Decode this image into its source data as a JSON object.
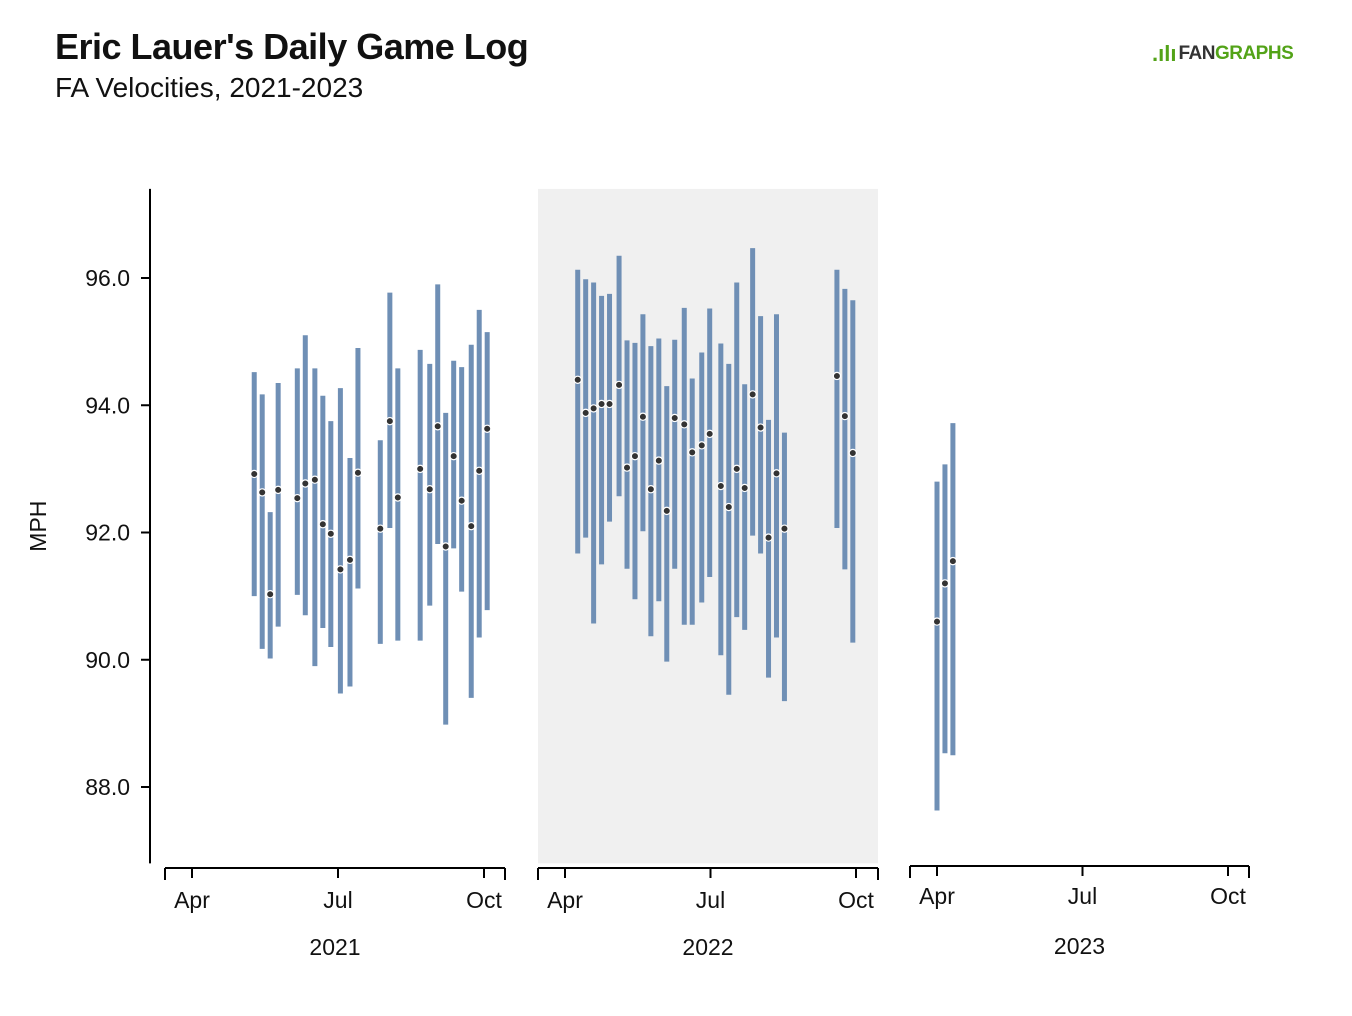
{
  "title": "Eric Lauer's Daily Game Log",
  "subtitle": "FA Velocities, 2021-2023",
  "logo": {
    "mark": ".ılı",
    "text_a": "FAN",
    "text_b": "GRAPHS"
  },
  "colors": {
    "bar": "#6f8fb5",
    "dot_fill": "#333333",
    "dot_stroke": "#ffffff",
    "highlight_panel": "#f0f0f0",
    "axis": "#000000",
    "logo_green": "#53a318"
  },
  "chart_data": {
    "type": "errorbar",
    "ylabel": "MPH",
    "ylim": [
      86.8,
      97.4
    ],
    "yticks": [
      88.0,
      90.0,
      92.0,
      94.0,
      96.0
    ],
    "ytick_labels": [
      "88.0",
      "90.0",
      "92.0",
      "94.0",
      "96.0"
    ],
    "month_ticks": [
      "Apr",
      "Jul",
      "Oct"
    ],
    "highlighted_panel": "2022",
    "panels": [
      {
        "year": "2021",
        "games": [
          {
            "date": "2021-05-10",
            "avg": 92.92,
            "min": 91.0,
            "max": 94.52
          },
          {
            "date": "2021-05-15",
            "avg": 92.63,
            "min": 90.17,
            "max": 94.17
          },
          {
            "date": "2021-05-20",
            "avg": 91.03,
            "min": 90.02,
            "max": 92.32
          },
          {
            "date": "2021-05-25",
            "avg": 92.67,
            "min": 90.52,
            "max": 94.35
          },
          {
            "date": "2021-06-06",
            "avg": 92.54,
            "min": 91.02,
            "max": 94.58
          },
          {
            "date": "2021-06-11",
            "avg": 92.77,
            "min": 90.7,
            "max": 95.1
          },
          {
            "date": "2021-06-17",
            "avg": 92.83,
            "min": 89.9,
            "max": 94.58
          },
          {
            "date": "2021-06-22",
            "avg": 92.13,
            "min": 90.5,
            "max": 94.15
          },
          {
            "date": "2021-06-27",
            "avg": 91.98,
            "min": 90.2,
            "max": 93.75
          },
          {
            "date": "2021-07-03",
            "avg": 91.42,
            "min": 89.47,
            "max": 94.27
          },
          {
            "date": "2021-07-09",
            "avg": 91.57,
            "min": 89.58,
            "max": 93.17
          },
          {
            "date": "2021-07-14",
            "avg": 92.94,
            "min": 91.12,
            "max": 94.9
          },
          {
            "date": "2021-07-28",
            "avg": 92.06,
            "min": 90.25,
            "max": 93.45
          },
          {
            "date": "2021-08-03",
            "avg": 93.75,
            "min": 92.07,
            "max": 95.77
          },
          {
            "date": "2021-08-08",
            "avg": 92.55,
            "min": 90.3,
            "max": 94.58
          },
          {
            "date": "2021-08-22",
            "avg": 93.0,
            "min": 90.3,
            "max": 94.87
          },
          {
            "date": "2021-08-28",
            "avg": 92.68,
            "min": 90.85,
            "max": 94.65
          },
          {
            "date": "2021-09-02",
            "avg": 93.67,
            "min": 91.82,
            "max": 95.9
          },
          {
            "date": "2021-09-07",
            "avg": 91.78,
            "min": 88.98,
            "max": 93.88
          },
          {
            "date": "2021-09-12",
            "avg": 93.2,
            "min": 91.75,
            "max": 94.7
          },
          {
            "date": "2021-09-17",
            "avg": 92.5,
            "min": 91.07,
            "max": 94.6
          },
          {
            "date": "2021-09-23",
            "avg": 92.1,
            "min": 89.4,
            "max": 94.95
          },
          {
            "date": "2021-09-28",
            "avg": 92.97,
            "min": 90.35,
            "max": 95.5
          },
          {
            "date": "2021-10-03",
            "avg": 93.63,
            "min": 90.78,
            "max": 95.15
          }
        ]
      },
      {
        "year": "2022",
        "games": [
          {
            "date": "2022-04-09",
            "avg": 94.4,
            "min": 91.67,
            "max": 96.13
          },
          {
            "date": "2022-04-14",
            "avg": 93.88,
            "min": 91.92,
            "max": 95.98
          },
          {
            "date": "2022-04-19",
            "avg": 93.95,
            "min": 90.57,
            "max": 95.93
          },
          {
            "date": "2022-04-24",
            "avg": 94.02,
            "min": 91.5,
            "max": 95.72
          },
          {
            "date": "2022-04-29",
            "avg": 94.02,
            "min": 92.17,
            "max": 95.75
          },
          {
            "date": "2022-05-05",
            "avg": 94.32,
            "min": 92.57,
            "max": 96.35
          },
          {
            "date": "2022-05-10",
            "avg": 93.02,
            "min": 91.43,
            "max": 95.02
          },
          {
            "date": "2022-05-15",
            "avg": 93.2,
            "min": 90.95,
            "max": 94.98
          },
          {
            "date": "2022-05-20",
            "avg": 93.82,
            "min": 92.02,
            "max": 95.43
          },
          {
            "date": "2022-05-25",
            "avg": 92.68,
            "min": 90.37,
            "max": 94.93
          },
          {
            "date": "2022-05-30",
            "avg": 93.13,
            "min": 90.92,
            "max": 95.05
          },
          {
            "date": "2022-06-04",
            "avg": 92.34,
            "min": 89.97,
            "max": 94.3
          },
          {
            "date": "2022-06-09",
            "avg": 93.8,
            "min": 91.43,
            "max": 95.03
          },
          {
            "date": "2022-06-15",
            "avg": 93.7,
            "min": 90.55,
            "max": 95.53
          },
          {
            "date": "2022-06-20",
            "avg": 93.26,
            "min": 90.55,
            "max": 94.42
          },
          {
            "date": "2022-06-26",
            "avg": 93.37,
            "min": 90.9,
            "max": 94.83
          },
          {
            "date": "2022-07-01",
            "avg": 93.55,
            "min": 91.3,
            "max": 95.52
          },
          {
            "date": "2022-07-08",
            "avg": 92.73,
            "min": 90.07,
            "max": 94.97
          },
          {
            "date": "2022-07-13",
            "avg": 92.4,
            "min": 89.45,
            "max": 94.65
          },
          {
            "date": "2022-07-18",
            "avg": 93.0,
            "min": 90.67,
            "max": 95.93
          },
          {
            "date": "2022-07-23",
            "avg": 92.7,
            "min": 90.47,
            "max": 94.33
          },
          {
            "date": "2022-07-28",
            "avg": 94.17,
            "min": 91.95,
            "max": 96.47
          },
          {
            "date": "2022-08-02",
            "avg": 93.65,
            "min": 91.67,
            "max": 95.4
          },
          {
            "date": "2022-08-07",
            "avg": 91.92,
            "min": 89.72,
            "max": 93.77
          },
          {
            "date": "2022-08-12",
            "avg": 92.93,
            "min": 90.35,
            "max": 95.43
          },
          {
            "date": "2022-08-17",
            "avg": 92.06,
            "min": 89.35,
            "max": 93.57
          },
          {
            "date": "2022-09-19",
            "avg": 94.46,
            "min": 92.07,
            "max": 96.13
          },
          {
            "date": "2022-09-24",
            "avg": 93.83,
            "min": 91.42,
            "max": 95.83
          },
          {
            "date": "2022-09-29",
            "avg": 93.25,
            "min": 90.27,
            "max": 95.65
          }
        ]
      },
      {
        "year": "2023",
        "games": [
          {
            "date": "2023-04-01",
            "avg": 90.6,
            "min": 87.63,
            "max": 92.8
          },
          {
            "date": "2023-04-06",
            "avg": 91.2,
            "min": 88.53,
            "max": 93.07
          },
          {
            "date": "2023-04-11",
            "avg": 91.55,
            "min": 88.5,
            "max": 93.72
          }
        ]
      }
    ]
  }
}
